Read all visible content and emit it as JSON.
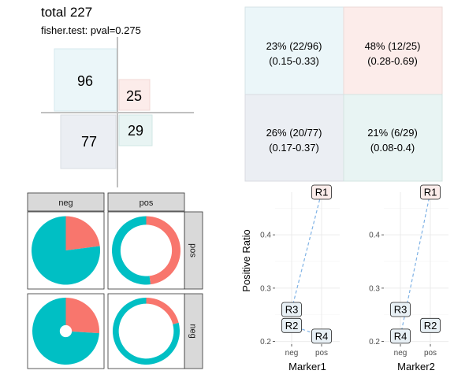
{
  "header": {
    "total": "total 227",
    "test": "fisher.test: pval=0.275"
  },
  "colors": {
    "neg": "#00BFC4",
    "pos": "#F8766D",
    "tl_tile": "#EBF6F9",
    "tr_tile": "#FCECEA",
    "bl_tile": "#EBEEF3",
    "br_tile": "#E8F4F3",
    "strip": "#D9D9D9",
    "grid": "#EBEBEB",
    "label_fill": "#E8F0F5",
    "label_fill_top": "#FBECEA",
    "line": "#7FB2E5"
  },
  "contingency": {
    "cells": [
      {
        "key": "top_left",
        "count": "96",
        "value": 96
      },
      {
        "key": "top_right",
        "count": "25",
        "value": 25
      },
      {
        "key": "bottom_left",
        "count": "77",
        "value": 77
      },
      {
        "key": "bottom_right",
        "count": "29",
        "value": 29
      }
    ]
  },
  "ratio_table": {
    "cells": [
      {
        "key": "top_left",
        "line1": "23% (22/96)",
        "line2": "(0.15-0.33)"
      },
      {
        "key": "top_right",
        "line1": "48% (12/25)",
        "line2": "(0.28-0.69)"
      },
      {
        "key": "bottom_left",
        "line1": "26% (20/77)",
        "line2": "(0.17-0.37)"
      },
      {
        "key": "bottom_right",
        "line1": "21% (6/29)",
        "line2": "(0.08-0.4)"
      }
    ]
  },
  "pie_grid": {
    "col_strips": [
      "neg",
      "pos"
    ],
    "row_strips": [
      "pos",
      "neg"
    ],
    "panels": [
      {
        "row": 0,
        "col": 0,
        "pos_fraction": 0.23,
        "hole": 0.0
      },
      {
        "row": 0,
        "col": 1,
        "pos_fraction": 0.48,
        "hole": 0.75
      },
      {
        "row": 1,
        "col": 0,
        "pos_fraction": 0.26,
        "hole": 0.18
      },
      {
        "row": 1,
        "col": 1,
        "pos_fraction": 0.21,
        "hole": 0.82
      }
    ]
  },
  "chart_data": [
    {
      "type": "line",
      "xlabel": "Marker1",
      "ylabel": "Positive Ratio",
      "categories": [
        "neg",
        "pos"
      ],
      "ylim": [
        0.195,
        0.48
      ],
      "yticks": [
        "0.2",
        "0.3",
        "0.4"
      ],
      "ytick_values": [
        0.2,
        0.3,
        0.4
      ],
      "grid": true,
      "series": [
        {
          "name": "R1",
          "x": "pos",
          "y": 0.48
        },
        {
          "name": "R2",
          "x": "neg",
          "y": 0.23
        },
        {
          "name": "R3",
          "x": "neg",
          "y": 0.26
        },
        {
          "name": "R4",
          "x": "pos",
          "y": 0.21
        }
      ],
      "lines": [
        [
          "R3",
          "R1"
        ],
        [
          "R2",
          "R4"
        ]
      ]
    },
    {
      "type": "line",
      "xlabel": "Marker2",
      "ylabel": "",
      "categories": [
        "neg",
        "pos"
      ],
      "ylim": [
        0.195,
        0.48
      ],
      "yticks": [
        "0.2",
        "0.3",
        "0.4"
      ],
      "ytick_values": [
        0.2,
        0.3,
        0.4
      ],
      "grid": true,
      "series": [
        {
          "name": "R1",
          "x": "pos",
          "y": 0.48
        },
        {
          "name": "R2",
          "x": "pos",
          "y": 0.23
        },
        {
          "name": "R3",
          "x": "neg",
          "y": 0.26
        },
        {
          "name": "R4",
          "x": "neg",
          "y": 0.21
        }
      ],
      "lines": [
        [
          "R4",
          "R1"
        ]
      ]
    }
  ]
}
